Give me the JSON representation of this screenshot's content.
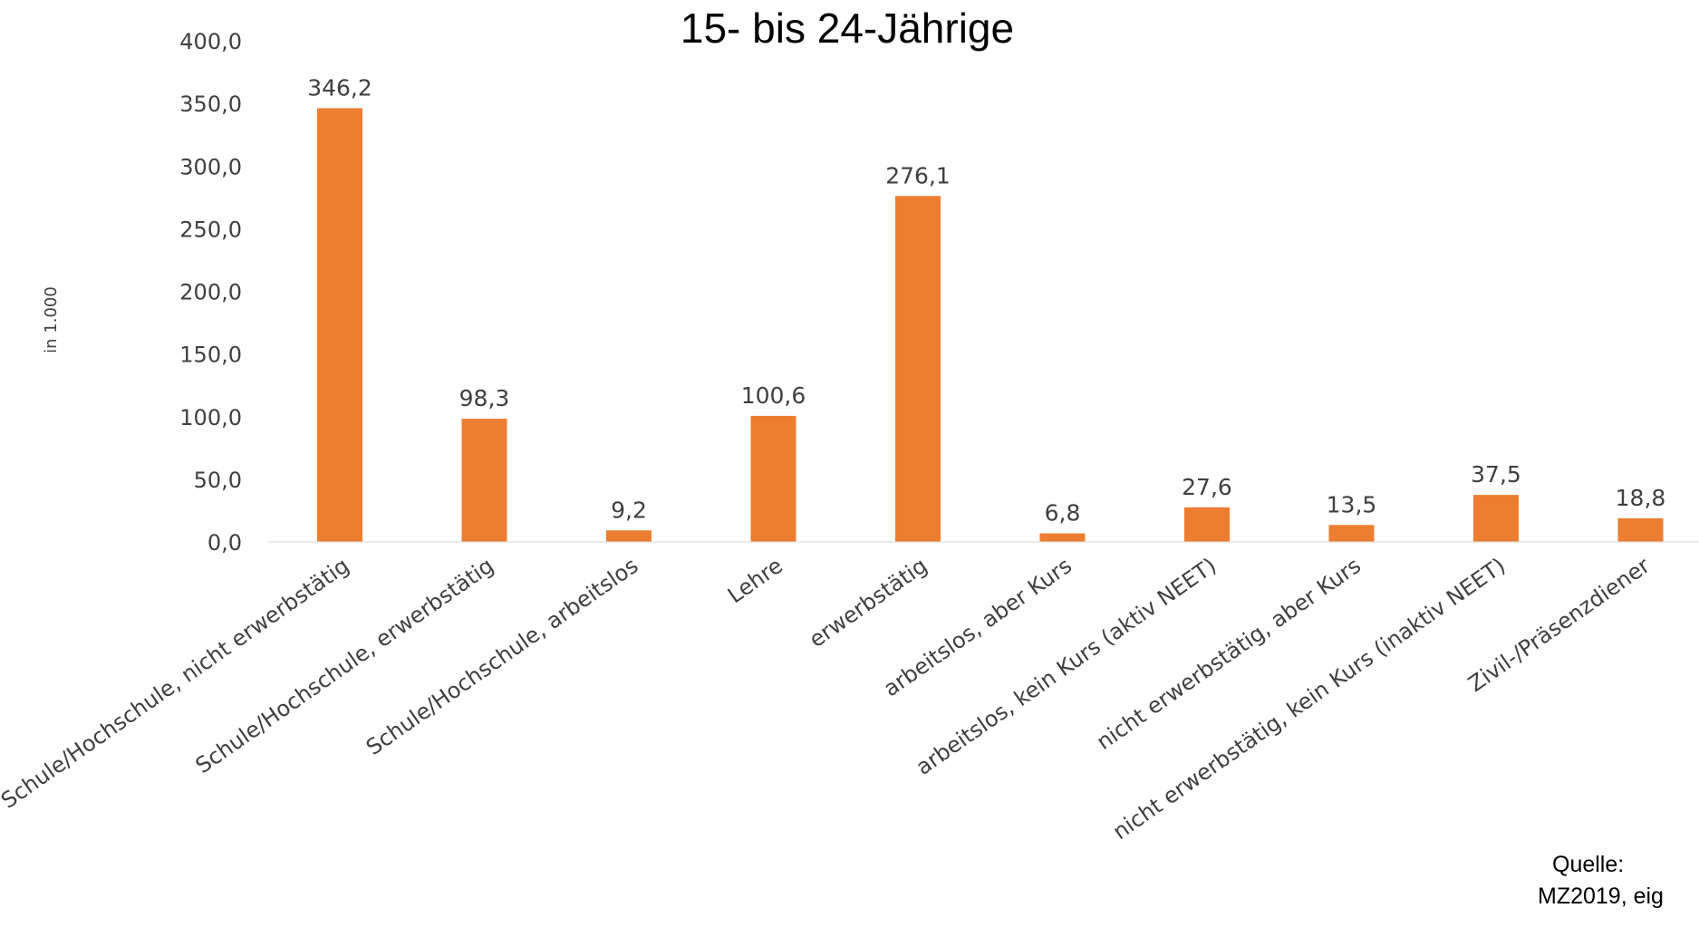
{
  "chart_data": {
    "type": "bar",
    "title": "15- bis 24-Jährige",
    "ylabel": "in 1.000",
    "xlabel": "",
    "ylim": [
      0,
      400
    ],
    "yticks": [
      "0,0",
      "50,0",
      "100,0",
      "150,0",
      "200,0",
      "250,0",
      "300,0",
      "350,0",
      "400,0"
    ],
    "grid": false,
    "legend": "none",
    "bar_color": "#ED7D31",
    "categories": [
      "Schule/Hochschule, nicht erwerbstätig",
      "Schule/Hochschule, erwerbstätig",
      "Schule/Hochschule, arbeitslos",
      "Lehre",
      "erwerbstätig",
      "arbeitslos, aber Kurs",
      "arbeitslos, kein Kurs (aktiv NEET)",
      "nicht erwerbstätig, aber Kurs",
      "nicht erwerbstätig, kein Kurs (inaktiv NEET)",
      "Zivil-/Präsenzdiener"
    ],
    "values": [
      346.2,
      98.3,
      9.2,
      100.6,
      276.1,
      6.8,
      27.6,
      13.5,
      37.5,
      18.8
    ],
    "data_labels": [
      "346,2",
      "98,3",
      "9,2",
      "100,6",
      "276,1",
      "6,8",
      "27,6",
      "13,5",
      "37,5",
      "18,8"
    ]
  },
  "source": {
    "line1": "Quelle:",
    "line2": "MZ2019, eig"
  }
}
